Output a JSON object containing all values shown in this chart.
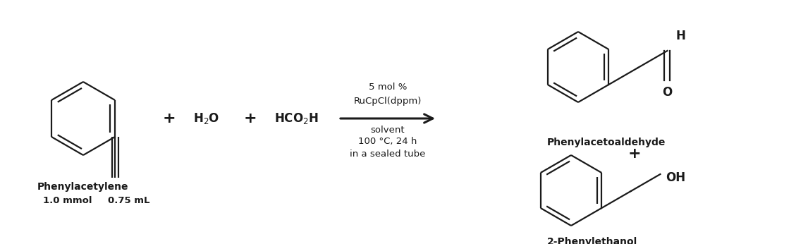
{
  "background_color": "#ffffff",
  "figure_width": 11.46,
  "figure_height": 3.46,
  "dpi": 100,
  "text_elements": {
    "phenylacetylene_label": "Phenylacetylene",
    "amount1": "1.0 mmol",
    "amount2": "0.75 mL",
    "catalyst_line1": "5 mol %",
    "catalyst_line2": "RuCpCl(dppm)",
    "catalyst_line3": "solvent",
    "catalyst_line4": "100 °C, 24 h",
    "catalyst_line5": "in a sealed tube",
    "product1_label": "Phenylacetoaldehyde",
    "plus1": "+",
    "plus2": "+",
    "plus3": "+",
    "product2_label": "2-Phenylethanol",
    "H": "H",
    "O": "O",
    "OH": "OH"
  },
  "font_size_labels": 10,
  "font_size_formula": 11,
  "font_size_small": 9.5,
  "arrow_color": "#000000",
  "line_color": "#1a1a1a",
  "line_width": 1.6
}
